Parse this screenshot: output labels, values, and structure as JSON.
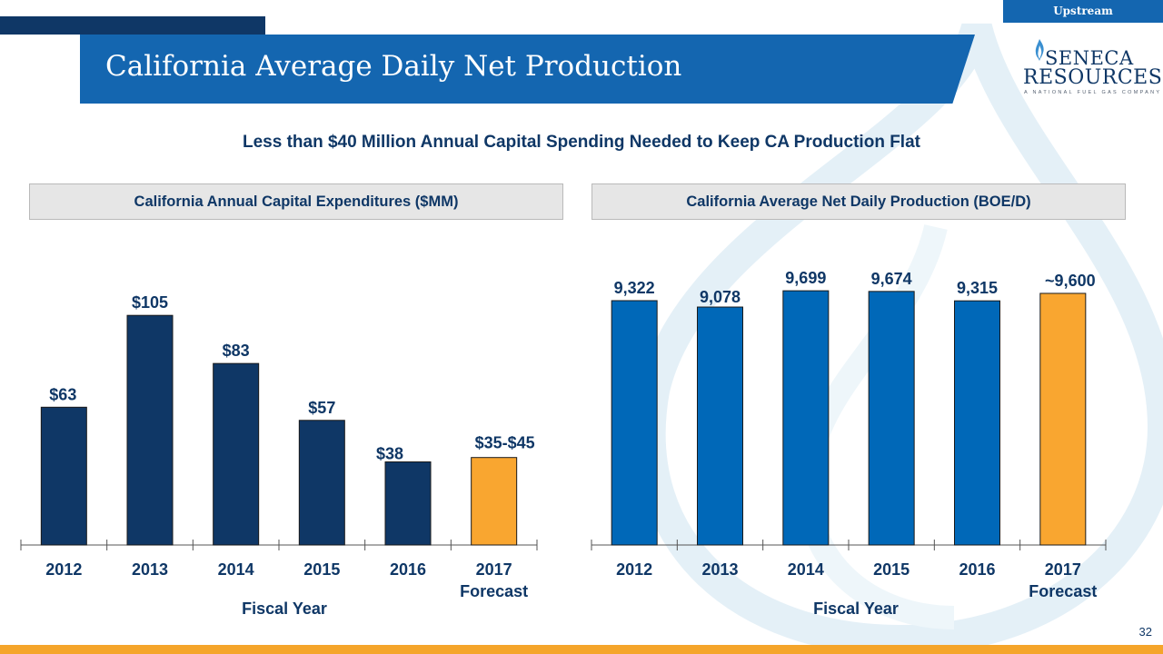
{
  "header": {
    "tag": "Upstream",
    "title": "California Average Daily Net Production"
  },
  "logo": {
    "line1": "SENECA",
    "line2": "RESOURCES",
    "tagline": "A NATIONAL FUEL GAS COMPANY"
  },
  "subtitle": "Less than $40 Million Annual Capital Spending Needed to Keep CA Production Flat",
  "colors": {
    "navy": "#0f3766",
    "blue": "#0068b8",
    "orange": "#f9a630",
    "banner": "#1466b0"
  },
  "chart_data": [
    {
      "type": "bar",
      "title": "California Annual Capital Expenditures ($MM)",
      "categories": [
        "2012",
        "2013",
        "2014",
        "2015",
        "2016",
        "2017"
      ],
      "category_sublabels": [
        "",
        "",
        "",
        "",
        "",
        "Forecast"
      ],
      "values": [
        63,
        105,
        83,
        57,
        38,
        40
      ],
      "value_labels": [
        "$63",
        "$105",
        "$83",
        "$57",
        "$38",
        "$35-$45"
      ],
      "forecast_index": 5,
      "xlabel": "Fiscal Year",
      "ylabel": "",
      "ylim": [
        0,
        130
      ]
    },
    {
      "type": "bar",
      "title": "California Average Net Daily Production (BOE/D)",
      "categories": [
        "2012",
        "2013",
        "2014",
        "2015",
        "2016",
        "2017"
      ],
      "category_sublabels": [
        "",
        "",
        "",
        "",
        "",
        "Forecast"
      ],
      "values": [
        9322,
        9078,
        9699,
        9674,
        9315,
        9600
      ],
      "value_labels": [
        "9,322",
        "9,078",
        "9,699",
        "9,674",
        "9,315",
        "~9,600"
      ],
      "forecast_index": 5,
      "xlabel": "Fiscal Year",
      "ylabel": "",
      "ylim": [
        0,
        10500
      ]
    }
  ],
  "footer": {
    "page_number": "32"
  }
}
